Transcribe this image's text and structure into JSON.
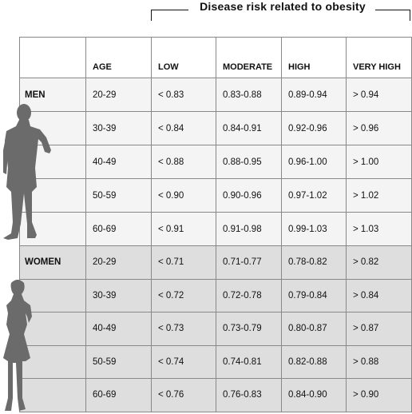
{
  "title": "Disease risk related to obesity",
  "columns": [
    "AGE",
    "LOW",
    "MODERATE",
    "HIGH",
    "VERY HIGH"
  ],
  "groups": [
    {
      "label": "MEN",
      "rows": [
        [
          "20-29",
          "< 0.83",
          "0.83-0.88",
          "0.89-0.94",
          "> 0.94"
        ],
        [
          "30-39",
          "< 0.84",
          "0.84-0.91",
          "0.92-0.96",
          "> 0.96"
        ],
        [
          "40-49",
          "< 0.88",
          "0.88-0.95",
          "0.96-1.00",
          "> 1.00"
        ],
        [
          "50-59",
          "< 0.90",
          "0.90-0.96",
          "0.97-1.02",
          "> 1.02"
        ],
        [
          "60-69",
          "< 0.91",
          "0.91-0.98",
          "0.99-1.03",
          "> 1.03"
        ]
      ]
    },
    {
      "label": "WOMEN",
      "rows": [
        [
          "20-29",
          "< 0.71",
          "0.71-0.77",
          "0.78-0.82",
          "> 0.82"
        ],
        [
          "30-39",
          "< 0.72",
          "0.72-0.78",
          "0.79-0.84",
          "> 0.84"
        ],
        [
          "40-49",
          "< 0.73",
          "0.73-0.79",
          "0.80-0.87",
          "> 0.87"
        ],
        [
          "50-59",
          "< 0.74",
          "0.74-0.81",
          "0.82-0.88",
          "> 0.88"
        ],
        [
          "60-69",
          "< 0.76",
          "0.76-0.83",
          "0.84-0.90",
          "> 0.90"
        ]
      ]
    }
  ],
  "colors": {
    "men_row": "#f4f4f4",
    "women_row": "#dedede",
    "silhouette": "#6b6b6b"
  },
  "icons": {
    "men": "man-silhouette-icon",
    "women": "woman-silhouette-icon"
  }
}
